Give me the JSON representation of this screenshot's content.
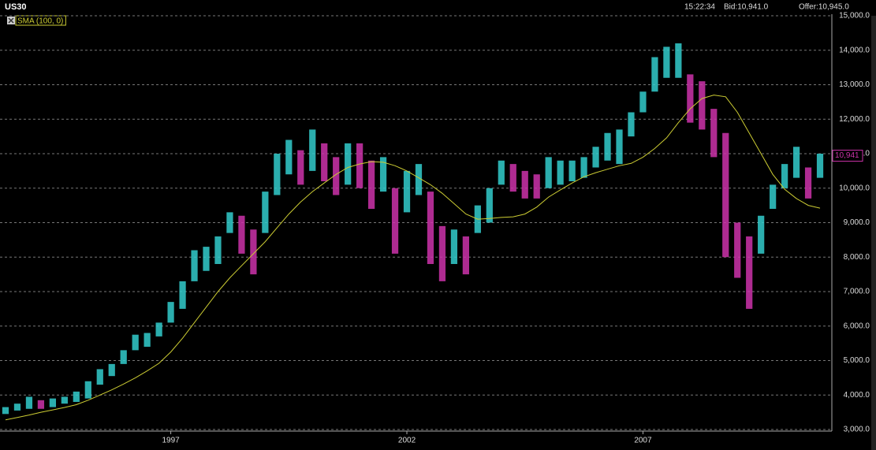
{
  "chart_data": {
    "type": "ohlc",
    "title": "US30",
    "time": "15:22:34",
    "bid": "Bid:10,941.0",
    "offer": "Offer:10,945.0",
    "x": [
      1993.5,
      1993.75,
      1994.0,
      1994.25,
      1994.5,
      1994.75,
      1995.0,
      1995.25,
      1995.5,
      1995.75,
      1996.0,
      1996.25,
      1996.5,
      1996.75,
      1997.0,
      1997.25,
      1997.5,
      1997.75,
      1998.0,
      1998.25,
      1998.5,
      1998.75,
      1999.0,
      1999.25,
      1999.5,
      1999.75,
      2000.0,
      2000.25,
      2000.5,
      2000.75,
      2001.0,
      2001.25,
      2001.5,
      2001.75,
      2002.0,
      2002.25,
      2002.5,
      2002.75,
      2003.0,
      2003.25,
      2003.5,
      2003.75,
      2004.0,
      2004.25,
      2004.5,
      2004.75,
      2005.0,
      2005.25,
      2005.5,
      2005.75,
      2006.0,
      2006.25,
      2006.5,
      2006.75,
      2007.0,
      2007.25,
      2007.5,
      2007.75,
      2008.0,
      2008.25,
      2008.5,
      2008.75,
      2009.0,
      2009.25,
      2009.5,
      2009.75,
      2010.0,
      2010.25,
      2010.5,
      2010.75
    ],
    "high": [
      3650,
      3750,
      3950,
      3850,
      3900,
      3950,
      4100,
      4400,
      4750,
      4900,
      5300,
      5750,
      5800,
      6100,
      6700,
      7300,
      8200,
      8300,
      8600,
      9300,
      9200,
      8800,
      9900,
      11000,
      11400,
      11100,
      11700,
      11300,
      10900,
      11300,
      11300,
      10800,
      10900,
      10000,
      10500,
      10700,
      9900,
      8900,
      8800,
      8600,
      9500,
      10000,
      10800,
      10700,
      10500,
      10400,
      10900,
      10800,
      10800,
      10900,
      11200,
      11600,
      11700,
      12200,
      12800,
      13800,
      14100,
      14200,
      13300,
      13100,
      12300,
      11600,
      9000,
      8600,
      9200,
      10100,
      10700,
      11200,
      10600,
      11000
    ],
    "low": [
      3450,
      3550,
      3600,
      3600,
      3650,
      3750,
      3800,
      3900,
      4300,
      4550,
      4900,
      5300,
      5400,
      5700,
      6100,
      6500,
      7300,
      7600,
      7800,
      8700,
      8100,
      7500,
      8700,
      9800,
      10400,
      10100,
      10500,
      10200,
      9800,
      10100,
      10000,
      9400,
      9900,
      8100,
      9300,
      9800,
      7800,
      7300,
      7800,
      7500,
      8700,
      9000,
      10100,
      9900,
      9700,
      9700,
      10000,
      10100,
      10200,
      10300,
      10600,
      10800,
      10700,
      11500,
      12200,
      12800,
      13200,
      13200,
      11900,
      11700,
      10900,
      8000,
      7400,
      6500,
      8100,
      9400,
      10000,
      10300,
      9700,
      10300
    ],
    "up_color": "#33cccc",
    "down_color": "#cc33aa",
    "overlays": [
      {
        "name": "SMA (100, 0)",
        "color": "#cccc33",
        "values": [
          3280,
          3350,
          3420,
          3500,
          3570,
          3640,
          3720,
          3850,
          4000,
          4150,
          4320,
          4500,
          4700,
          4920,
          5250,
          5650,
          6100,
          6550,
          7000,
          7400,
          7750,
          8100,
          8450,
          8850,
          9250,
          9600,
          9900,
          10150,
          10400,
          10600,
          10700,
          10770,
          10750,
          10650,
          10500,
          10300,
          10100,
          9850,
          9550,
          9250,
          9100,
          9120,
          9150,
          9170,
          9250,
          9450,
          9740,
          9950,
          10150,
          10330,
          10450,
          10550,
          10650,
          10720,
          10900,
          11150,
          11460,
          11900,
          12300,
          12600,
          12700,
          12650,
          12200,
          11600,
          11000,
          10400,
          9970,
          9700,
          9500,
          9420
        ]
      }
    ],
    "last_price": {
      "value": 10941,
      "label": "10,941"
    },
    "xlim": [
      1993.45,
      2010.95
    ],
    "xticks": [
      1997,
      2002,
      2007
    ],
    "ylim": [
      3000,
      15000
    ],
    "yticks": [
      {
        "value": 3000,
        "label": "3,000.0"
      },
      {
        "value": 4000,
        "label": "4,000.0"
      },
      {
        "value": 5000,
        "label": "5,000.0"
      },
      {
        "value": 6000,
        "label": "6,000.0"
      },
      {
        "value": 7000,
        "label": "7,000.0"
      },
      {
        "value": 8000,
        "label": "8,000.0"
      },
      {
        "value": 9000,
        "label": "9,000.0"
      },
      {
        "value": 10000,
        "label": "10,000.0"
      },
      {
        "value": 11000,
        "label": "11,000.0"
      },
      {
        "value": 12000,
        "label": "12,000.0"
      },
      {
        "value": 13000,
        "label": "13,000.0"
      },
      {
        "value": 14000,
        "label": "14,000.0"
      },
      {
        "value": 15000,
        "label": "15,000.0"
      }
    ],
    "grid": true
  }
}
